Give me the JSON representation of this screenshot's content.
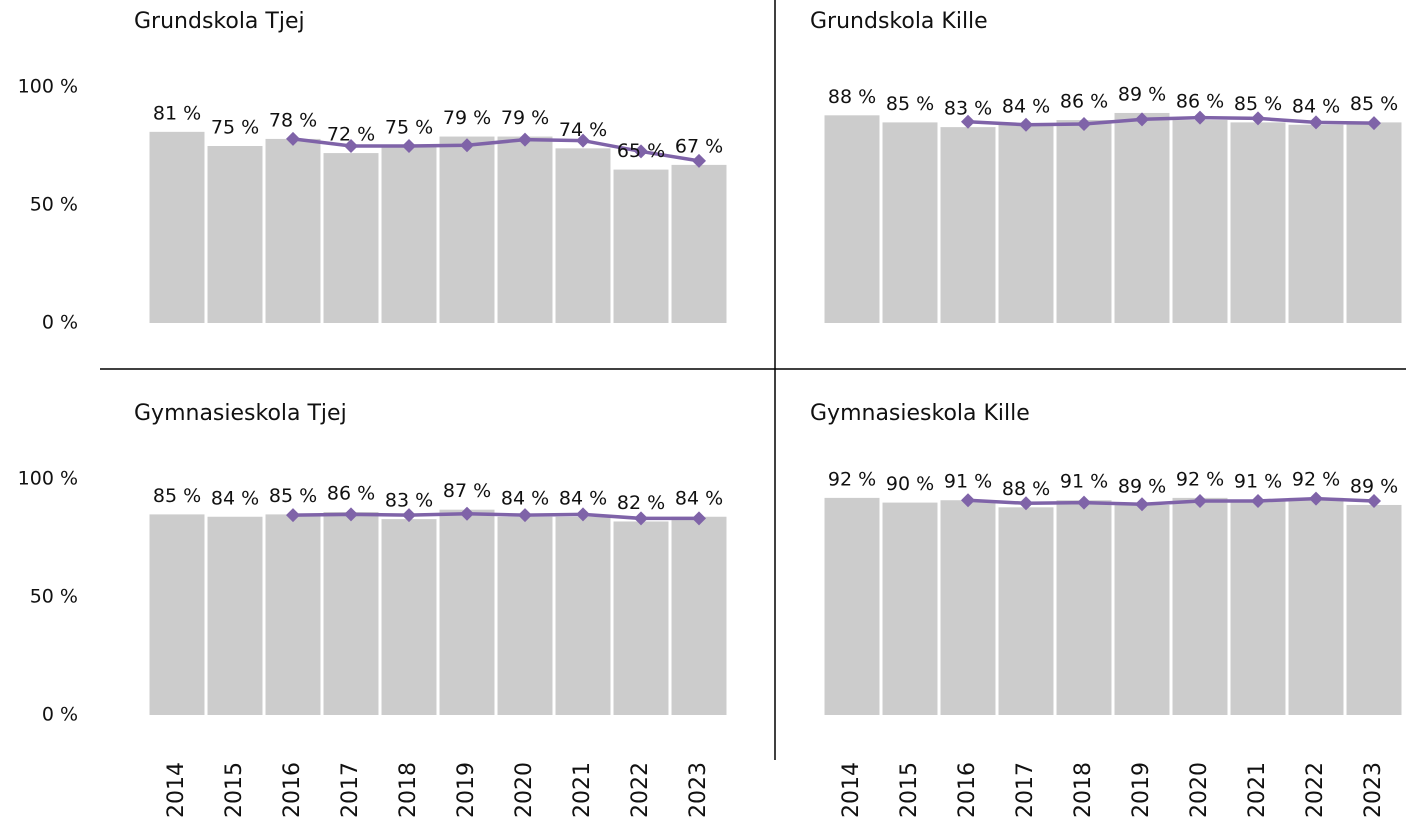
{
  "chart_data": [
    {
      "type": "bar",
      "title": "Grundskola Tjej",
      "ylim": [
        0,
        100
      ],
      "yticks": [
        {
          "value": 0,
          "label": "0 %"
        },
        {
          "value": 50,
          "label": "50 %"
        },
        {
          "value": 100,
          "label": "100 %"
        }
      ],
      "series": [
        {
          "type": "bar",
          "color": "#cccccc",
          "values": [
            81,
            75,
            78,
            72,
            75,
            79,
            79,
            74,
            65,
            67
          ],
          "value_labels": [
            "81 %",
            "75 %",
            "78 %",
            "72 %",
            "75 %",
            "79 %",
            "79 %",
            "74 %",
            "65 %",
            "67 %"
          ]
        },
        {
          "type": "line",
          "color": "#7f63a8",
          "values": [
            null,
            null,
            78,
            75,
            75,
            75.3,
            77.7,
            77.3,
            72.7,
            68.7
          ]
        }
      ]
    },
    {
      "type": "bar",
      "title": "Grundskola Kille",
      "ylim": [
        0,
        100
      ],
      "series": [
        {
          "type": "bar",
          "color": "#cccccc",
          "values": [
            88,
            85,
            83,
            84,
            86,
            89,
            86,
            85,
            84,
            85
          ],
          "value_labels": [
            "88 %",
            "85 %",
            "83 %",
            "84 %",
            "86 %",
            "89 %",
            "86 %",
            "85 %",
            "84 %",
            "85 %"
          ]
        },
        {
          "type": "line",
          "color": "#7f63a8",
          "values": [
            null,
            null,
            85.3,
            84,
            84.3,
            86.3,
            87,
            86.7,
            85,
            84.7
          ]
        }
      ]
    },
    {
      "type": "bar",
      "title": "Gymnasieskola Tjej",
      "ylim": [
        0,
        100
      ],
      "yticks": [
        {
          "value": 0,
          "label": "0 %"
        },
        {
          "value": 50,
          "label": "50 %"
        },
        {
          "value": 100,
          "label": "100 %"
        }
      ],
      "categories": [
        "2014",
        "2015",
        "2016",
        "2017",
        "2018",
        "2019",
        "2020",
        "2021",
        "2022",
        "2023"
      ],
      "series": [
        {
          "type": "bar",
          "color": "#cccccc",
          "values": [
            85,
            84,
            85,
            86,
            83,
            87,
            84,
            84,
            82,
            84
          ],
          "value_labels": [
            "85 %",
            "84 %",
            "85 %",
            "86 %",
            "83 %",
            "87 %",
            "84 %",
            "84 %",
            "82 %",
            "84 %"
          ]
        },
        {
          "type": "line",
          "color": "#7f63a8",
          "values": [
            null,
            null,
            84.7,
            85,
            84.7,
            85.3,
            84.7,
            85,
            83.3,
            83.3
          ]
        }
      ]
    },
    {
      "type": "bar",
      "title": "Gymnasieskola Kille",
      "ylim": [
        0,
        100
      ],
      "categories": [
        "2014",
        "2015",
        "2016",
        "2017",
        "2018",
        "2019",
        "2020",
        "2021",
        "2022",
        "2023"
      ],
      "series": [
        {
          "type": "bar",
          "color": "#cccccc",
          "values": [
            92,
            90,
            91,
            88,
            91,
            89,
            92,
            91,
            92,
            89
          ],
          "value_labels": [
            "92 %",
            "90 %",
            "91 %",
            "88 %",
            "91 %",
            "89 %",
            "92 %",
            "91 %",
            "92 %",
            "89 %"
          ]
        },
        {
          "type": "line",
          "color": "#7f63a8",
          "values": [
            null,
            null,
            91,
            89.7,
            90,
            89.3,
            90.7,
            90.7,
            91.7,
            90.7
          ]
        }
      ]
    }
  ]
}
